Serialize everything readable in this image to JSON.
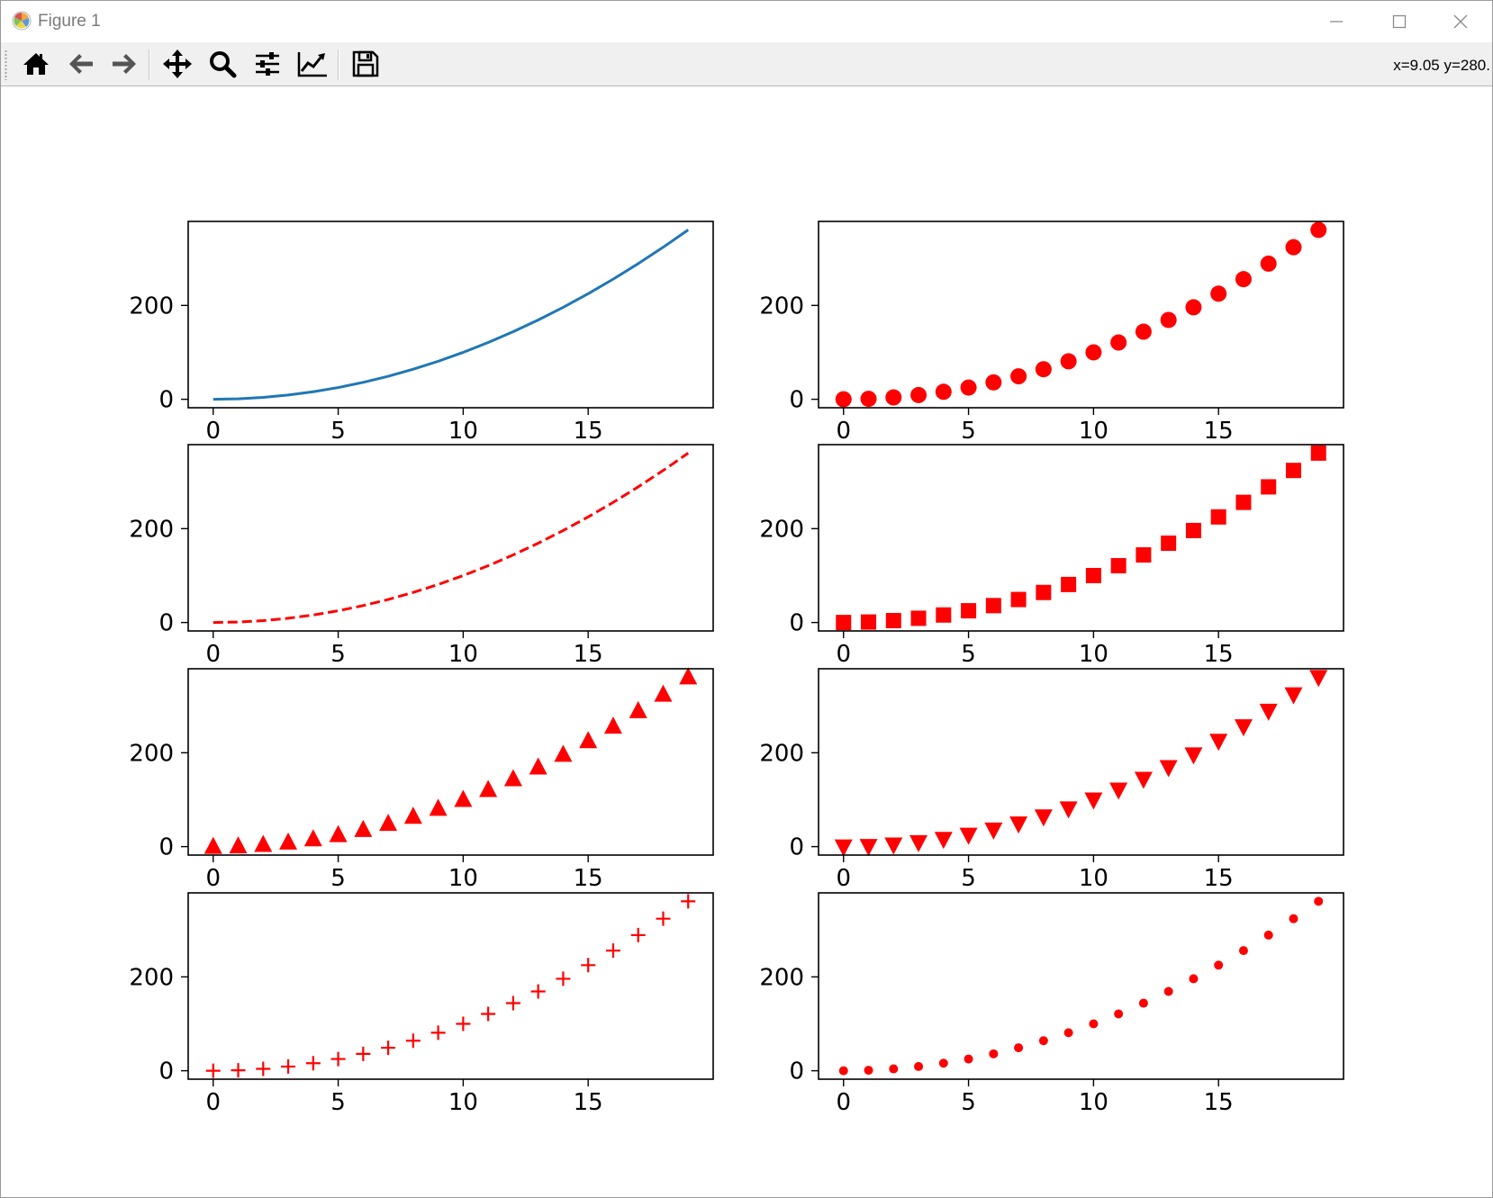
{
  "window": {
    "title": "Figure 1",
    "controls": {
      "minimize": "minimize",
      "maximize": "maximize",
      "close": "close"
    }
  },
  "toolbar": {
    "buttons": [
      {
        "name": "home",
        "icon": "home-icon"
      },
      {
        "name": "back",
        "icon": "arrow-left-icon"
      },
      {
        "name": "forward",
        "icon": "arrow-right-icon"
      },
      {
        "name": "pan",
        "icon": "move-icon"
      },
      {
        "name": "zoom",
        "icon": "zoom-icon"
      },
      {
        "name": "configure-subplots",
        "icon": "sliders-icon"
      },
      {
        "name": "edit-axis",
        "icon": "line-chart-icon"
      },
      {
        "name": "save",
        "icon": "floppy-disk-icon"
      }
    ],
    "coords": "x=9.05 y=280."
  },
  "chart_data": [
    {
      "type": "line",
      "panel": "row1-left",
      "style": "solid",
      "color": "#1f77b4",
      "marker": "none",
      "x": [
        0,
        1,
        2,
        3,
        4,
        5,
        6,
        7,
        8,
        9,
        10,
        11,
        12,
        13,
        14,
        15,
        16,
        17,
        18,
        19
      ],
      "y": [
        0,
        1,
        4,
        9,
        16,
        25,
        36,
        49,
        64,
        81,
        100,
        121,
        144,
        169,
        196,
        225,
        256,
        289,
        324,
        361
      ],
      "xticks": [
        "0",
        "5",
        "10",
        "15"
      ],
      "yticks": [
        "0",
        "200"
      ],
      "xlim": [
        -1,
        20
      ],
      "ylim": [
        -18,
        379
      ]
    },
    {
      "type": "scatter",
      "panel": "row1-right",
      "color": "#ff0000",
      "marker": "circle",
      "x": [
        0,
        1,
        2,
        3,
        4,
        5,
        6,
        7,
        8,
        9,
        10,
        11,
        12,
        13,
        14,
        15,
        16,
        17,
        18,
        19
      ],
      "y": [
        0,
        1,
        4,
        9,
        16,
        25,
        36,
        49,
        64,
        81,
        100,
        121,
        144,
        169,
        196,
        225,
        256,
        289,
        324,
        361
      ],
      "xticks": [
        "0",
        "5",
        "10",
        "15"
      ],
      "yticks": [
        "0",
        "200"
      ],
      "xlim": [
        -1,
        20
      ],
      "ylim": [
        -18,
        379
      ]
    },
    {
      "type": "line",
      "panel": "row2-left",
      "style": "dashed",
      "color": "#ff0000",
      "marker": "none",
      "x": [
        0,
        1,
        2,
        3,
        4,
        5,
        6,
        7,
        8,
        9,
        10,
        11,
        12,
        13,
        14,
        15,
        16,
        17,
        18,
        19
      ],
      "y": [
        0,
        1,
        4,
        9,
        16,
        25,
        36,
        49,
        64,
        81,
        100,
        121,
        144,
        169,
        196,
        225,
        256,
        289,
        324,
        361
      ],
      "xticks": [
        "0",
        "5",
        "10",
        "15"
      ],
      "yticks": [
        "0",
        "200"
      ],
      "xlim": [
        -1,
        20
      ],
      "ylim": [
        -18,
        379
      ]
    },
    {
      "type": "scatter",
      "panel": "row2-right",
      "color": "#ff0000",
      "marker": "square",
      "x": [
        0,
        1,
        2,
        3,
        4,
        5,
        6,
        7,
        8,
        9,
        10,
        11,
        12,
        13,
        14,
        15,
        16,
        17,
        18,
        19
      ],
      "y": [
        0,
        1,
        4,
        9,
        16,
        25,
        36,
        49,
        64,
        81,
        100,
        121,
        144,
        169,
        196,
        225,
        256,
        289,
        324,
        361
      ],
      "xticks": [
        "0",
        "5",
        "10",
        "15"
      ],
      "yticks": [
        "0",
        "200"
      ],
      "xlim": [
        -1,
        20
      ],
      "ylim": [
        -18,
        379
      ]
    },
    {
      "type": "scatter",
      "panel": "row3-left",
      "color": "#ff0000",
      "marker": "triangle-up",
      "x": [
        0,
        1,
        2,
        3,
        4,
        5,
        6,
        7,
        8,
        9,
        10,
        11,
        12,
        13,
        14,
        15,
        16,
        17,
        18,
        19
      ],
      "y": [
        0,
        1,
        4,
        9,
        16,
        25,
        36,
        49,
        64,
        81,
        100,
        121,
        144,
        169,
        196,
        225,
        256,
        289,
        324,
        361
      ],
      "xticks": [
        "0",
        "5",
        "10",
        "15"
      ],
      "yticks": [
        "0",
        "200"
      ],
      "xlim": [
        -1,
        20
      ],
      "ylim": [
        -18,
        379
      ]
    },
    {
      "type": "scatter",
      "panel": "row3-right",
      "color": "#ff0000",
      "marker": "triangle-down",
      "x": [
        0,
        1,
        2,
        3,
        4,
        5,
        6,
        7,
        8,
        9,
        10,
        11,
        12,
        13,
        14,
        15,
        16,
        17,
        18,
        19
      ],
      "y": [
        0,
        1,
        4,
        9,
        16,
        25,
        36,
        49,
        64,
        81,
        100,
        121,
        144,
        169,
        196,
        225,
        256,
        289,
        324,
        361
      ],
      "xticks": [
        "0",
        "5",
        "10",
        "15"
      ],
      "yticks": [
        "0",
        "200"
      ],
      "xlim": [
        -1,
        20
      ],
      "ylim": [
        -18,
        379
      ]
    },
    {
      "type": "scatter",
      "panel": "row4-left",
      "color": "#ff0000",
      "marker": "plus",
      "x": [
        0,
        1,
        2,
        3,
        4,
        5,
        6,
        7,
        8,
        9,
        10,
        11,
        12,
        13,
        14,
        15,
        16,
        17,
        18,
        19
      ],
      "y": [
        0,
        1,
        4,
        9,
        16,
        25,
        36,
        49,
        64,
        81,
        100,
        121,
        144,
        169,
        196,
        225,
        256,
        289,
        324,
        361
      ],
      "xticks": [
        "0",
        "5",
        "10",
        "15"
      ],
      "yticks": [
        "0",
        "200"
      ],
      "xlim": [
        -1,
        20
      ],
      "ylim": [
        -18,
        379
      ]
    },
    {
      "type": "scatter",
      "panel": "row4-right",
      "color": "#ff0000",
      "marker": "point",
      "x": [
        0,
        1,
        2,
        3,
        4,
        5,
        6,
        7,
        8,
        9,
        10,
        11,
        12,
        13,
        14,
        15,
        16,
        17,
        18,
        19
      ],
      "y": [
        0,
        1,
        4,
        9,
        16,
        25,
        36,
        49,
        64,
        81,
        100,
        121,
        144,
        169,
        196,
        225,
        256,
        289,
        324,
        361
      ],
      "xticks": [
        "0",
        "5",
        "10",
        "15"
      ],
      "yticks": [
        "0",
        "200"
      ],
      "xlim": [
        -1,
        20
      ],
      "ylim": [
        -18,
        379
      ]
    }
  ]
}
